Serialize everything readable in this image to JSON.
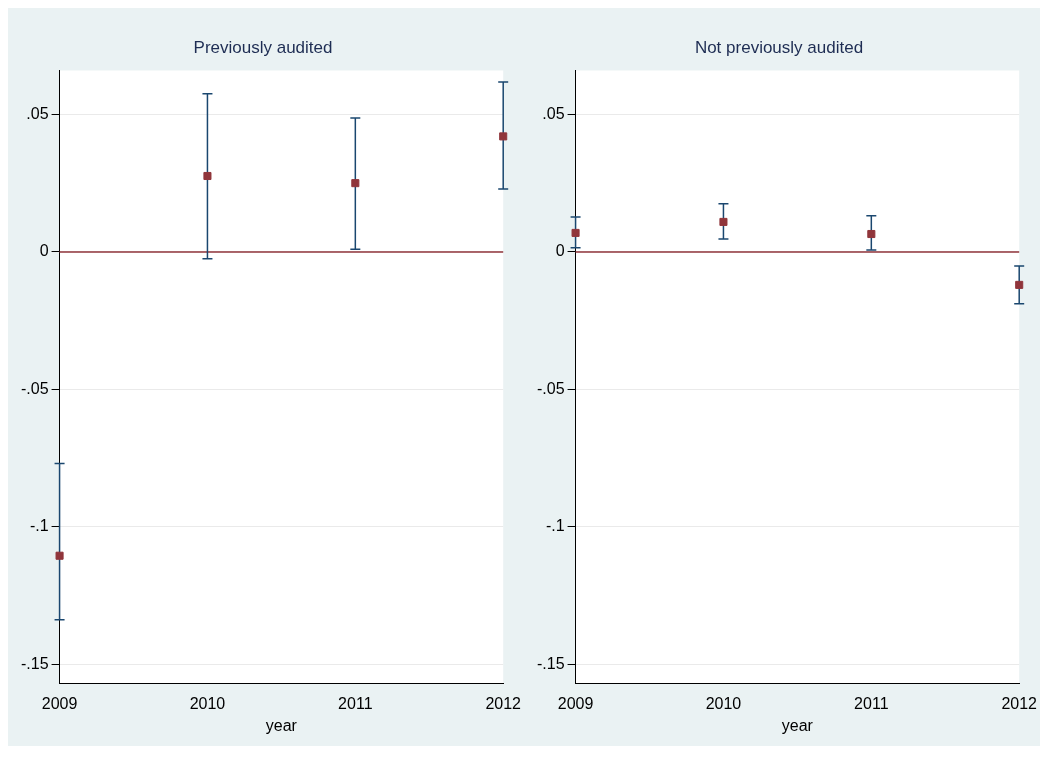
{
  "chart_data": [
    {
      "type": "scatter",
      "title": "Previously audited",
      "xlabel": "year",
      "x": [
        2009,
        2010,
        2011,
        2012
      ],
      "xlim": [
        2009,
        2012
      ],
      "xticks": [
        2009,
        2010,
        2011,
        2012
      ],
      "ylim": [
        -0.157,
        0.066
      ],
      "yticks": [
        {
          "value": -0.15,
          "label": "-.15"
        },
        {
          "value": -0.1,
          "label": "-.1"
        },
        {
          "value": -0.05,
          "label": "-.05"
        },
        {
          "value": 0,
          "label": "0"
        },
        {
          "value": 0.05,
          "label": ".05"
        }
      ],
      "grid": "y",
      "marker": "square",
      "legend": false,
      "series": [
        {
          "color": "#90353b",
          "values": [
            -0.1105,
            0.0276,
            0.025,
            0.042
          ],
          "errors": [
            [
              -0.1338,
              -0.077
            ],
            [
              -0.0025,
              0.0575
            ],
            [
              0.001,
              0.0487
            ],
            [
              0.0229,
              0.0618
            ]
          ]
        }
      ],
      "ref_lines": [
        {
          "axis": "y",
          "value": 0,
          "color": "#90353b"
        }
      ]
    },
    {
      "type": "scatter",
      "title": "Not previously audited",
      "xlabel": "year",
      "x": [
        2009,
        2010,
        2011,
        2012
      ],
      "xlim": [
        2009,
        2012
      ],
      "xticks": [
        2009,
        2010,
        2011,
        2012
      ],
      "ylim": [
        -0.157,
        0.066
      ],
      "yticks": [
        {
          "value": -0.15,
          "label": "-.15"
        },
        {
          "value": -0.1,
          "label": "-.1"
        },
        {
          "value": -0.05,
          "label": "-.05"
        },
        {
          "value": 0,
          "label": "0"
        },
        {
          "value": 0.05,
          "label": ".05"
        }
      ],
      "grid": "y",
      "marker": "square",
      "legend": false,
      "series": [
        {
          "color": "#90353b",
          "values": [
            0.0069,
            0.0109,
            0.0065,
            -0.012
          ],
          "errors": [
            [
              0.0015,
              0.0127
            ],
            [
              0.0047,
              0.0175
            ],
            [
              0.0007,
              0.0131
            ],
            [
              -0.0189,
              -0.0051
            ]
          ]
        }
      ],
      "ref_lines": [
        {
          "axis": "y",
          "value": 0,
          "color": "#90353b"
        }
      ]
    }
  ]
}
